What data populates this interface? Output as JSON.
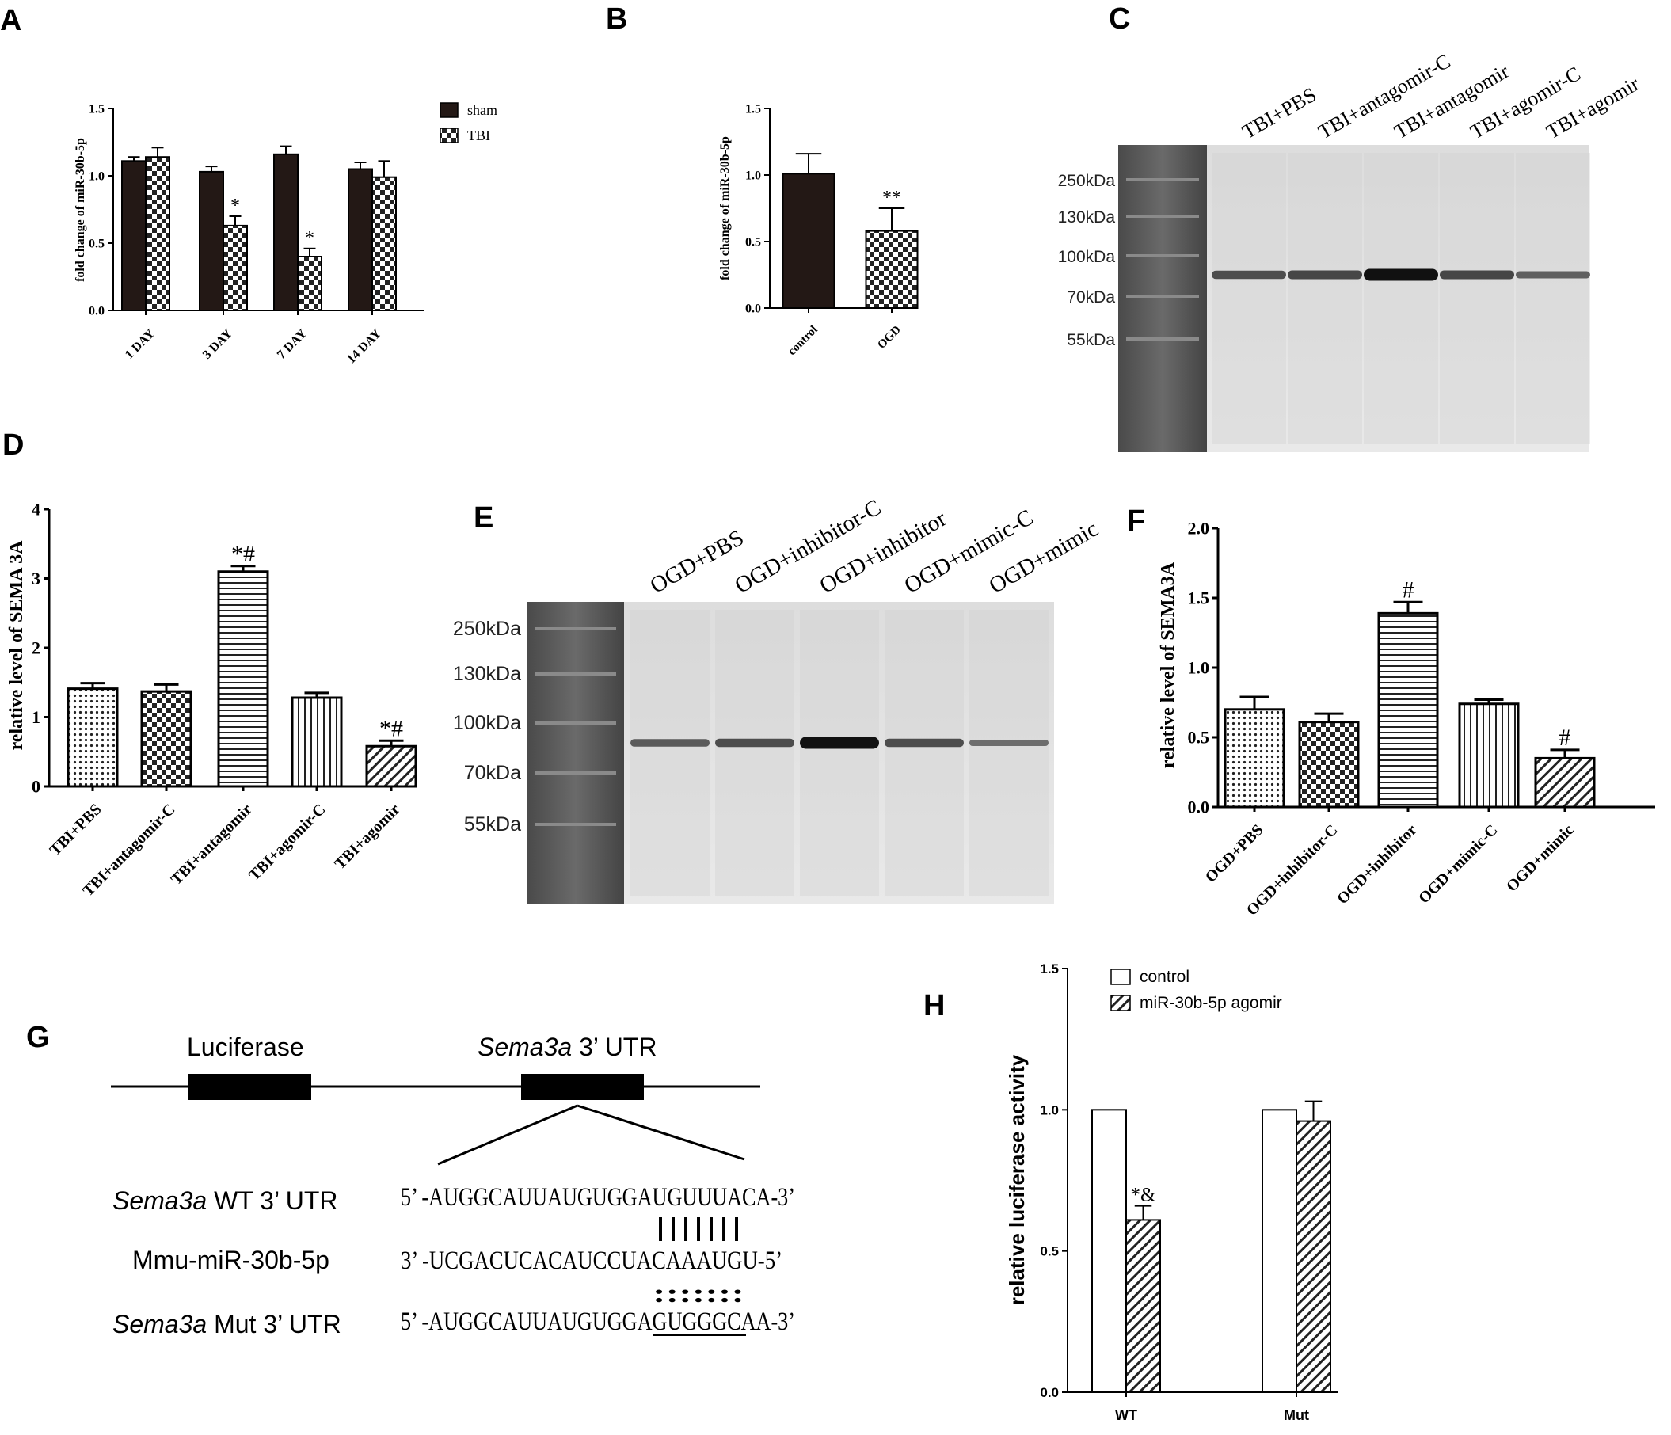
{
  "panels": {
    "A": "A",
    "B": "B",
    "C": "C",
    "D": "D",
    "E": "E",
    "F": "F",
    "G": "G",
    "H": "H"
  },
  "colors": {
    "dark": "#231815",
    "ink": "#000000"
  },
  "chart_data": [
    {
      "id": "A",
      "type": "bar",
      "categories": [
        "1 DAY",
        "3 DAY",
        "7 DAY",
        "14 DAY"
      ],
      "series": [
        {
          "name": "sham",
          "values": [
            1.11,
            1.03,
            1.16,
            1.05
          ],
          "errors": [
            0.03,
            0.04,
            0.06,
            0.05
          ],
          "pattern": "solid"
        },
        {
          "name": "TBI",
          "values": [
            1.14,
            0.63,
            0.4,
            0.99
          ],
          "errors": [
            0.07,
            0.07,
            0.06,
            0.12
          ],
          "pattern": "check"
        }
      ],
      "annotations": [
        "",
        "*",
        "*",
        ""
      ],
      "ylabel": "fold change of miR-30b-5p",
      "ylim": [
        0,
        1.5
      ],
      "yticks": [
        "0.0",
        "0.5",
        "1.0",
        "1.5"
      ],
      "legend": "top-right"
    },
    {
      "id": "B",
      "type": "bar",
      "categories": [
        "control",
        "OGD"
      ],
      "series": [
        {
          "values": [
            1.01,
            0.58
          ],
          "errors": [
            0.15,
            0.17
          ],
          "patterns": [
            "solid",
            "check"
          ]
        }
      ],
      "annotations": [
        "",
        "**"
      ],
      "ylabel": "fold change of miR-30b-5p",
      "ylim": [
        0,
        1.5
      ],
      "yticks": [
        "0.0",
        "0.5",
        "1.0",
        "1.5"
      ]
    },
    {
      "id": "D",
      "type": "bar",
      "categories": [
        "TBI+PBS",
        "TBI+antagomir-C",
        "TBI+antagomir",
        "TBI+agomir-C",
        "TBI+agomir"
      ],
      "series": [
        {
          "values": [
            1.41,
            1.37,
            3.1,
            1.28,
            0.58
          ],
          "errors": [
            0.08,
            0.1,
            0.08,
            0.07,
            0.08
          ],
          "patterns": [
            "dots",
            "check",
            "hlines",
            "vlines",
            "diag"
          ]
        }
      ],
      "annotations": [
        "",
        "",
        "*#",
        "",
        "*#"
      ],
      "ylabel": "relative level of SEMA 3A",
      "ylim": [
        0,
        4
      ],
      "yticks": [
        "0",
        "1",
        "2",
        "3",
        "4"
      ]
    },
    {
      "id": "F",
      "type": "bar",
      "categories": [
        "OGD+PBS",
        "OGD+inhibitor-C",
        "OGD+inhibitor",
        "OGD+mimic-C",
        "OGD+mimic"
      ],
      "series": [
        {
          "values": [
            0.7,
            0.61,
            1.39,
            0.74,
            0.35
          ],
          "errors": [
            0.09,
            0.06,
            0.08,
            0.03,
            0.06
          ],
          "patterns": [
            "dots",
            "check",
            "hlines",
            "vlines",
            "diag"
          ]
        }
      ],
      "annotations": [
        "",
        "",
        "#",
        "",
        "#"
      ],
      "ylabel": "relative level of SEMA3A",
      "ylim": [
        0,
        2.0
      ],
      "yticks": [
        "0.0",
        "0.5",
        "1.0",
        "1.5",
        "2.0"
      ]
    },
    {
      "id": "H",
      "type": "bar",
      "categories": [
        "WT",
        "Mut"
      ],
      "series": [
        {
          "name": "control",
          "values": [
            1.0,
            1.0
          ],
          "errors": [
            0,
            0
          ],
          "pattern": "open"
        },
        {
          "name": "miR-30b-5p agomir",
          "values": [
            0.61,
            0.96
          ],
          "errors": [
            0.05,
            0.07
          ],
          "pattern": "diag"
        }
      ],
      "annotations": [
        "*&",
        ""
      ],
      "ylabel": "relative luciferase activity",
      "ylim": [
        0,
        1.5
      ],
      "yticks": [
        "0.0",
        "0.5",
        "1.0",
        "1.5"
      ],
      "legend": "top-left"
    }
  ],
  "blots": [
    {
      "id": "C",
      "lanes": [
        "TBI+PBS",
        "TBI+antagomir-C",
        "TBI+antagomir",
        "TBI+agomir-C",
        "TBI+agomir"
      ],
      "markers": [
        "250kDa",
        "130kDa",
        "100kDa",
        "70kDa",
        "55kDa"
      ],
      "band_intensity": [
        0.55,
        0.6,
        1.0,
        0.6,
        0.4
      ]
    },
    {
      "id": "E",
      "lanes": [
        "OGD+PBS",
        "OGD+inhibitor-C",
        "OGD+inhibitor",
        "OGD+mimic-C",
        "OGD+mimic"
      ],
      "markers": [
        "250kDa",
        "130kDa",
        "100kDa",
        "70kDa",
        "55kDa"
      ],
      "band_intensity": [
        0.45,
        0.55,
        1.0,
        0.55,
        0.3
      ]
    }
  ],
  "diagramG": {
    "luciferase": "Luciferase",
    "utr_italic": "Sema3a",
    "utr_rest": " 3’ UTR",
    "rows": [
      {
        "name_italic": "Sema3a",
        "name_rest": " WT  3’ UTR",
        "seq": "5’ -AUGGCAUUAUGUGGAUGUUUACA-3’"
      },
      {
        "name_italic": "",
        "name_rest": "Mmu-miR-30b-5p",
        "seq": "3’ -UCGACUCACAUCCUACAAAUGU-5’"
      },
      {
        "name_italic": "Sema3a",
        "name_rest": " Mut 3’ UTR",
        "seq": "5’ -AUGGCAUUAUGUGGAGUGGGCAA-3’"
      }
    ],
    "pair_marks": "|||||||",
    "colon_marks": ":::::::"
  }
}
